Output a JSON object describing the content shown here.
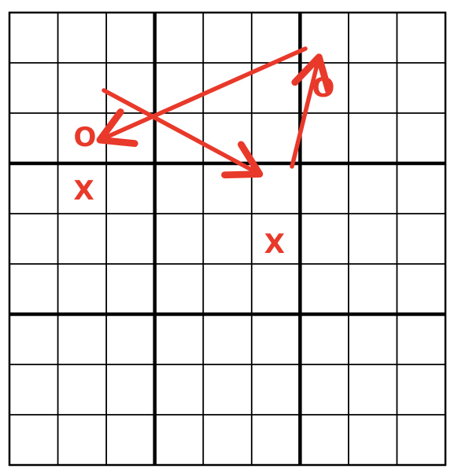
{
  "puzzle": {
    "grid_size": 9,
    "box_size": 3,
    "cells_filled": [],
    "annotation_color": "#e8392a",
    "grid_color": "#000000",
    "background_color": "#ffffff"
  },
  "marks": [
    {
      "id": "o-left",
      "symbol": "O",
      "row": 2,
      "col": 1,
      "shape": "circle-icon"
    },
    {
      "id": "x-left",
      "symbol": "X",
      "row": 3,
      "col": 1,
      "shape": "cross-icon"
    },
    {
      "id": "x-center",
      "symbol": "X",
      "row": 4,
      "col": 5,
      "shape": "cross-icon"
    },
    {
      "id": "o-right",
      "symbol": "O",
      "row": 1,
      "col": 6,
      "shape": "circle-icon"
    }
  ],
  "arrows": [
    {
      "id": "arrow-o-left-to-x-center",
      "from": "o-left",
      "to": "x-center"
    },
    {
      "id": "arrow-x-center-to-o-right",
      "from": "x-center",
      "to": "o-right"
    },
    {
      "id": "arrow-o-right-to-x-left",
      "from": "o-right",
      "to": "x-left"
    }
  ]
}
